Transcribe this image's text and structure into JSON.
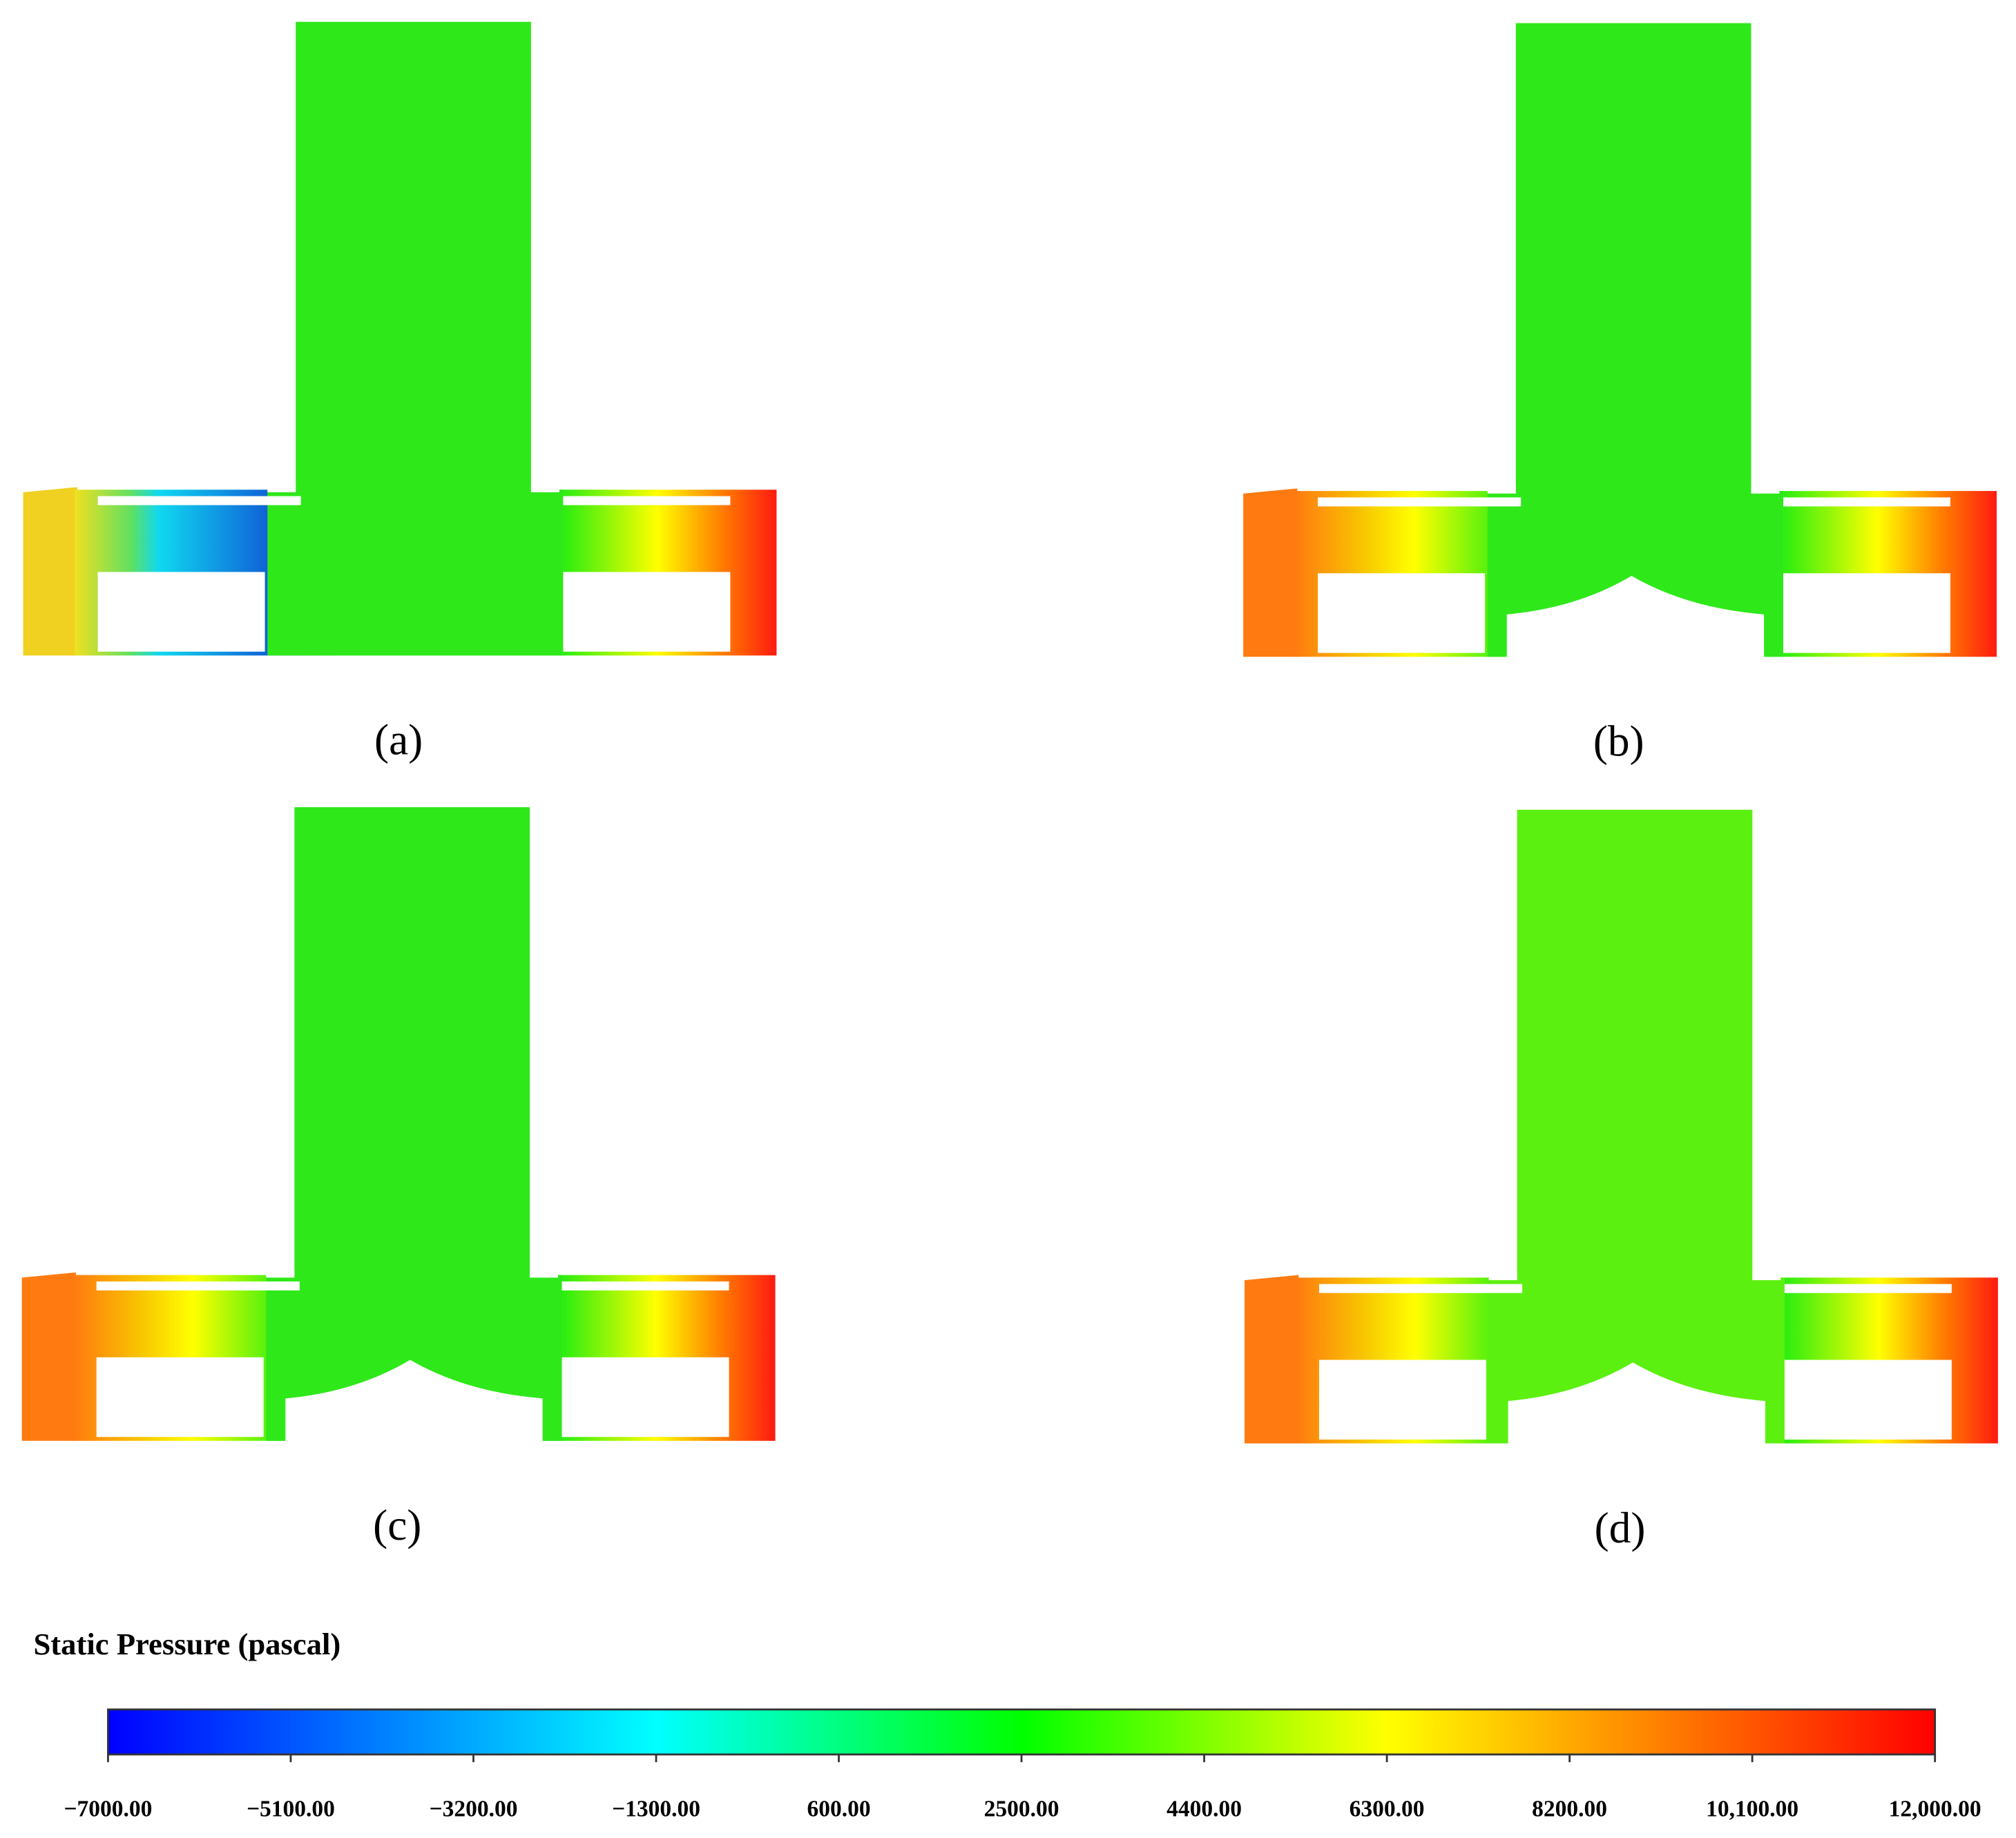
{
  "panels": [
    {
      "label": "(a)"
    },
    {
      "label": "(b)"
    },
    {
      "label": "(c)"
    },
    {
      "label": "(d)"
    }
  ],
  "colorbar": {
    "title": "Static Pressure (pascal)",
    "lim": [
      -7000,
      12000
    ],
    "ticks": [
      {
        "value": -7000,
        "label": "−7000.00"
      },
      {
        "value": -5100,
        "label": "−5100.00"
      },
      {
        "value": -3200,
        "label": "−3200.00"
      },
      {
        "value": -1300,
        "label": "−1300.00"
      },
      {
        "value": 600,
        "label": "600.00"
      },
      {
        "value": 2500,
        "label": "2500.00"
      },
      {
        "value": 4400,
        "label": "4400.00"
      },
      {
        "value": 6300,
        "label": "6300.00"
      },
      {
        "value": 8200,
        "label": "8200.00"
      },
      {
        "value": 10100,
        "label": "10,100.00"
      },
      {
        "value": 12000,
        "label": "12,000.00"
      }
    ]
  }
}
